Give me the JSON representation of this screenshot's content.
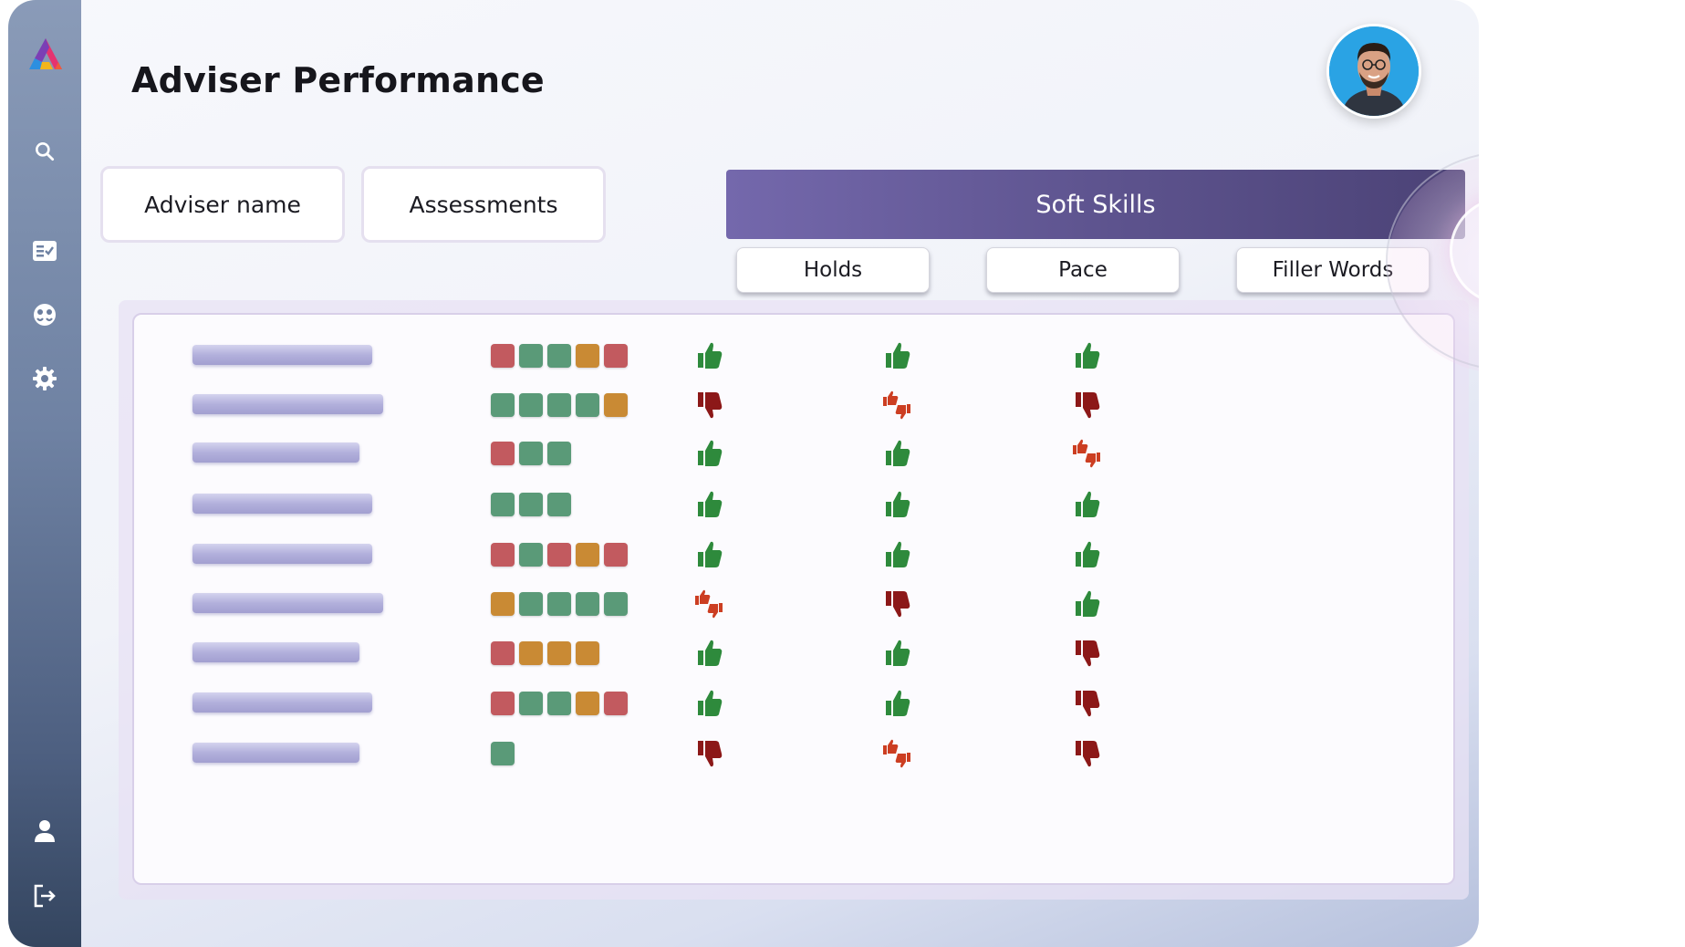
{
  "page": {
    "title": "Adviser Performance"
  },
  "sidebar": {
    "items": [
      {
        "icon": "search-icon"
      },
      {
        "icon": "checklist-icon"
      },
      {
        "icon": "faces-icon"
      },
      {
        "icon": "gear-icon"
      },
      {
        "icon": "user-icon"
      },
      {
        "icon": "logout-icon"
      }
    ]
  },
  "header": {
    "columns": {
      "adviser_name": "Adviser name",
      "assessments": "Assessments",
      "soft_skills": "Soft Skills"
    },
    "soft_skill_columns": [
      "Holds",
      "Pace",
      "Filler Words"
    ]
  },
  "colors": {
    "assessment_red": "#c25a5f",
    "assessment_green": "#5a9a78",
    "assessment_orange": "#c98a34",
    "thumb_up": "#2e8a3c",
    "thumb_down": "#8c1818",
    "thumb_mixed": "#cc3e22",
    "soft_skills_header": "#6a5f9e"
  },
  "rows": [
    {
      "assessments": [
        "red",
        "green",
        "green",
        "orange",
        "red"
      ],
      "holds": "up",
      "pace": "up",
      "filler_words": "up"
    },
    {
      "assessments": [
        "green",
        "green",
        "green",
        "green",
        "orange"
      ],
      "holds": "down",
      "pace": "mixed",
      "filler_words": "down"
    },
    {
      "assessments": [
        "red",
        "green",
        "green"
      ],
      "holds": "up",
      "pace": "up",
      "filler_words": "mixed"
    },
    {
      "assessments": [
        "green",
        "green",
        "green"
      ],
      "holds": "up",
      "pace": "up",
      "filler_words": "up"
    },
    {
      "assessments": [
        "red",
        "green",
        "red",
        "orange",
        "red"
      ],
      "holds": "up",
      "pace": "up",
      "filler_words": "up"
    },
    {
      "assessments": [
        "orange",
        "green",
        "green",
        "green",
        "green"
      ],
      "holds": "mixed",
      "pace": "down",
      "filler_words": "up"
    },
    {
      "assessments": [
        "red",
        "orange",
        "orange",
        "orange"
      ],
      "holds": "up",
      "pace": "up",
      "filler_words": "down"
    },
    {
      "assessments": [
        "red",
        "green",
        "green",
        "orange",
        "red"
      ],
      "holds": "up",
      "pace": "up",
      "filler_words": "down"
    },
    {
      "assessments": [
        "green"
      ],
      "holds": "down",
      "pace": "mixed",
      "filler_words": "down"
    }
  ]
}
